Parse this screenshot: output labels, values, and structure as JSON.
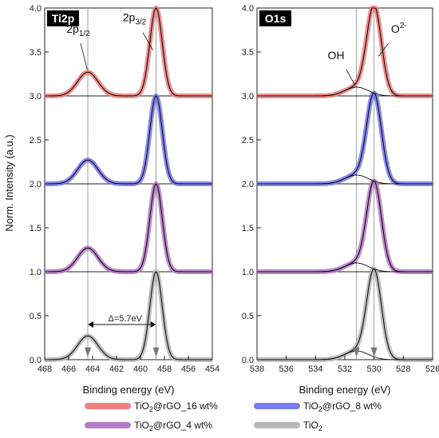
{
  "ylabel": "Norm. Intensity (a.u.)",
  "legend": [
    {
      "name": "TiO2@rGO_16 wt%",
      "main": "TiO",
      "sub": "2",
      "rest": "@rGO_16 wt%",
      "color": "#f08080"
    },
    {
      "name": "TiO2@rGO_8 wt%",
      "main": "TiO",
      "sub": "2",
      "rest": "@rGO_8 wt%",
      "color": "#7b7bf0"
    },
    {
      "name": "TiO2@rGO_4 wt%",
      "main": "TiO",
      "sub": "2",
      "rest": "@rGO_4 wt%",
      "color": "#b57cc8"
    },
    {
      "name": "TiO2",
      "main": "TiO",
      "sub": "2",
      "rest": "",
      "color": "#b8b8b8"
    }
  ],
  "chart_data": [
    {
      "type": "line",
      "panel": "Ti2p",
      "xlabel": "Binding energy (eV)",
      "ylabel": "Norm. Intensity (a.u.)",
      "xlim": [
        468,
        454
      ],
      "ylim": [
        0,
        4
      ],
      "xticks": [
        468,
        466,
        464,
        462,
        460,
        458,
        456,
        454
      ],
      "yticks": [
        "0.0",
        "0.5",
        "1.0",
        "1.5",
        "2.0",
        "2.5",
        "3.0",
        "3.5",
        "4.0"
      ],
      "reference_lines": [
        464.4,
        458.7
      ],
      "peaks": [
        {
          "center": 458.7,
          "height": 1.0,
          "sigma": 0.52
        },
        {
          "center": 464.4,
          "height": 0.27,
          "sigma": 0.85
        }
      ],
      "series": [
        {
          "name": "TiO2",
          "offset": 0.0,
          "color": "#b8b8b8"
        },
        {
          "name": "TiO2@rGO_4 wt%",
          "offset": 1.0,
          "color": "#b57cc8"
        },
        {
          "name": "TiO2@rGO_8 wt%",
          "offset": 2.0,
          "color": "#7b7bf0"
        },
        {
          "name": "TiO2@rGO_16 wt%",
          "offset": 3.0,
          "color": "#f08080"
        }
      ],
      "annotations": [
        {
          "text": "Δ=5.7eV",
          "from": 464.4,
          "to": 458.7,
          "y": 0.4
        },
        {
          "text_main": "2p",
          "text_sub": "1/2",
          "x": 465.2,
          "y": 3.72
        },
        {
          "text_main": "2p",
          "text_sub": "3/2",
          "x": 460.5,
          "y": 3.85
        }
      ]
    },
    {
      "type": "line",
      "panel": "O1s",
      "xlabel": "Binding energy (eV)",
      "xlim": [
        538,
        526
      ],
      "ylim": [
        0,
        4
      ],
      "xticks": [
        538,
        536,
        534,
        532,
        530,
        528,
        526
      ],
      "yticks": [
        "0.0",
        "0.5",
        "1.0",
        "1.5",
        "2.0",
        "2.5",
        "3.0",
        "3.5",
        "4.0"
      ],
      "reference_lines": [
        531.2,
        530.0
      ],
      "peaks": [
        {
          "center": 530.0,
          "height": 1.0,
          "sigma": 0.5
        },
        {
          "center": 531.2,
          "height": 0.1,
          "sigma": 0.8
        }
      ],
      "series": [
        {
          "name": "TiO2",
          "offset": 0.0,
          "color": "#b8b8b8"
        },
        {
          "name": "TiO2@rGO_4 wt%",
          "offset": 1.0,
          "color": "#b57cc8"
        },
        {
          "name": "TiO2@rGO_8 wt%",
          "offset": 2.0,
          "color": "#7b7bf0"
        },
        {
          "name": "TiO2@rGO_16 wt%",
          "offset": 3.0,
          "color": "#f08080"
        }
      ],
      "annotations": [
        {
          "text_main": "OH",
          "x": 532.6,
          "y": 3.42
        },
        {
          "text_main": "O",
          "text_sup": "2-",
          "x": 528.3,
          "y": 3.72
        }
      ]
    }
  ]
}
